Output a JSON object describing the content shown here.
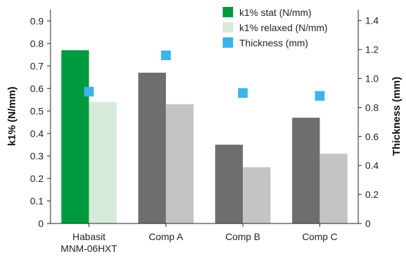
{
  "chart_data": {
    "type": "bar",
    "categories": [
      [
        "Habasit",
        "MNM-06HXT"
      ],
      [
        "Comp A"
      ],
      [
        "Comp B"
      ],
      [
        "Comp C"
      ]
    ],
    "series": [
      {
        "name": "k1% stat (N/mm)",
        "axis": "left",
        "kind": "bar",
        "values": [
          0.77,
          0.67,
          0.35,
          0.47
        ],
        "colors": [
          "#009a3e",
          "#6e6e6e",
          "#6e6e6e",
          "#6e6e6e"
        ],
        "legend_color": "#009a3e"
      },
      {
        "name": "k1% relaxed (N/mm)",
        "axis": "left",
        "kind": "bar",
        "values": [
          0.54,
          0.53,
          0.25,
          0.31
        ],
        "colors": [
          "#d6ead9",
          "#c4c4c4",
          "#c4c4c4",
          "#c4c4c4"
        ],
        "legend_color": "#d6ead9"
      },
      {
        "name": "Thickness (mm)",
        "axis": "right",
        "kind": "marker",
        "values": [
          0.91,
          1.16,
          0.9,
          0.88
        ],
        "color": "#3bb4e8",
        "legend_color": "#3bb4e8"
      }
    ],
    "ylabel": "k1% (N/mm)",
    "ylabel_right": "Thickness (mm)",
    "ylim": [
      0,
      0.95
    ],
    "ylim_right": [
      0,
      1.475
    ],
    "yticks": [
      "0",
      "0.1",
      "0.2",
      "0.3",
      "0.4",
      "0.5",
      "0.6",
      "0.7",
      "0.8",
      "0.9"
    ],
    "yticks_right": [
      "0",
      "0.2",
      "0.4",
      "0.6",
      "0.8",
      "1.0",
      "1.2",
      "1.4"
    ],
    "grid": false,
    "legend_position": "top-right"
  }
}
